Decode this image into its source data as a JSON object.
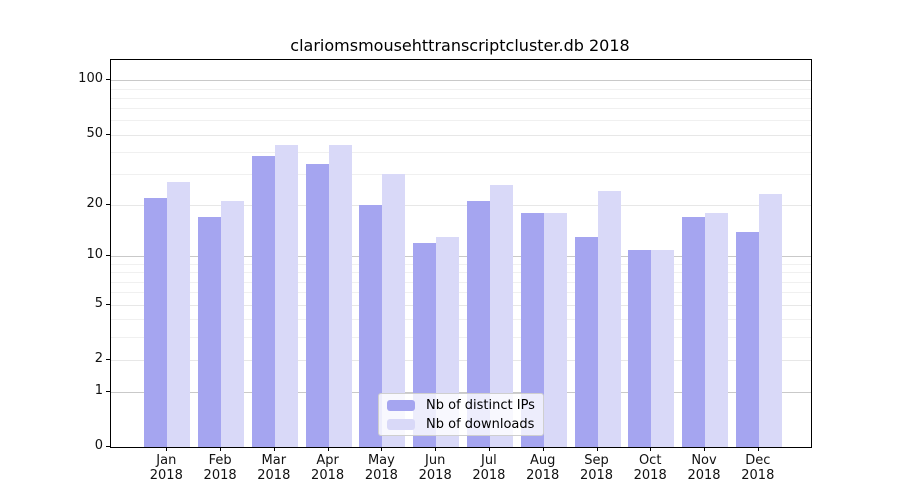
{
  "title": "clariomsmousehttranscriptcluster.db 2018",
  "chart_data": {
    "type": "bar",
    "title": "clariomsmousehttranscriptcluster.db 2018",
    "categories": [
      "Jan",
      "Feb",
      "Mar",
      "Apr",
      "May",
      "Jun",
      "Jul",
      "Aug",
      "Sep",
      "Oct",
      "Nov",
      "Dec"
    ],
    "category_sublabel": "2018",
    "series": [
      {
        "name": "Nb of distinct IPs",
        "color": "#a5a5f0",
        "values": [
          22,
          17,
          38,
          34,
          20,
          12,
          21,
          18,
          13,
          11,
          17,
          14
        ]
      },
      {
        "name": "Nb of downloads",
        "color": "#d9d9f8",
        "values": [
          27,
          21,
          44,
          44,
          30,
          13,
          26,
          18,
          24,
          11,
          18,
          23
        ]
      }
    ],
    "xlabel": "",
    "ylabel": "",
    "yscale": "log1p",
    "ylim": [
      0,
      120
    ],
    "yticks": [
      0,
      1,
      2,
      5,
      10,
      20,
      50,
      100
    ],
    "minor_gridlines": [
      3,
      4,
      6,
      7,
      8,
      9,
      30,
      40,
      60,
      70,
      80,
      90
    ],
    "grid": "on",
    "legend_position": "lower-center-inside"
  },
  "colors": {
    "ips_bar": "#a5a5f0",
    "downloads_bar": "#d9d9f8",
    "grid_minor": "#f0f0f0",
    "grid_major": "#e7e7e7",
    "grid_pow10": "#c9c9c9",
    "axis": "#000000",
    "legend_border": "#cfcfcf"
  }
}
